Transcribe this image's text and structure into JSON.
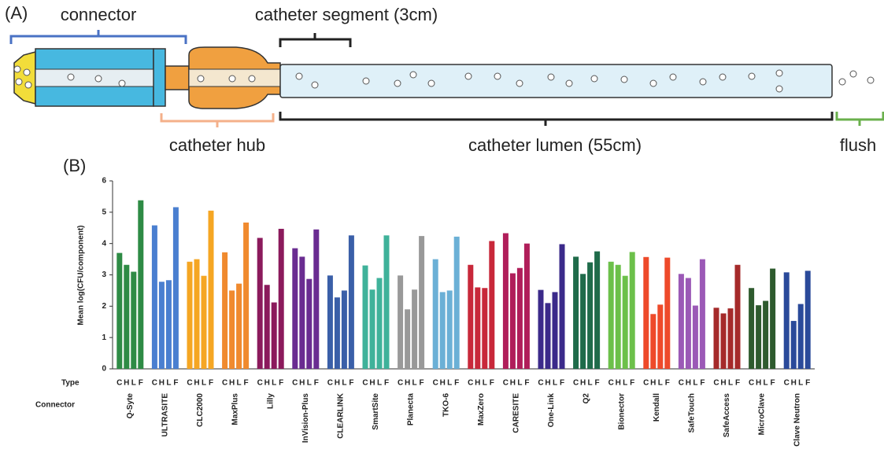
{
  "diagram": {
    "panel_label": "(A)",
    "connector": "connector",
    "segment": "catheter segment (3cm)",
    "hub": "catheter hub",
    "lumen": "catheter lumen (55cm)",
    "flush": "flush"
  },
  "chart_data": {
    "type": "grouped-bar",
    "panel_label": "(B)",
    "y_label": "Mean log(CFU/component)",
    "type_row_label": "Type",
    "connector_row_label": "Connector",
    "types": [
      "C",
      "H",
      "L",
      "F"
    ],
    "ylim": [
      0,
      6
    ],
    "yticks": [
      0,
      1,
      2,
      3,
      4,
      5,
      6
    ],
    "groups": [
      {
        "name": "Q-Syte",
        "color": "#2e8b45",
        "values": [
          3.7,
          3.32,
          3.1,
          5.38
        ]
      },
      {
        "name": "ULTRASITE",
        "color": "#4a7fd0",
        "values": [
          4.58,
          2.78,
          2.83,
          5.16
        ]
      },
      {
        "name": "CLC2000",
        "color": "#f5a623",
        "values": [
          3.42,
          3.5,
          2.97,
          5.05
        ]
      },
      {
        "name": "MaxPlus",
        "color": "#f08a2e",
        "values": [
          3.72,
          2.5,
          2.72,
          4.67
        ]
      },
      {
        "name": "Lilly",
        "color": "#8b1a5c",
        "values": [
          4.18,
          2.68,
          2.12,
          4.47
        ]
      },
      {
        "name": "InVision-Plus",
        "color": "#6a2c91",
        "values": [
          3.85,
          3.58,
          2.87,
          4.45
        ]
      },
      {
        "name": "CLEARLINK",
        "color": "#3a5fa8",
        "values": [
          2.98,
          2.28,
          2.5,
          4.26
        ]
      },
      {
        "name": "SmartSite",
        "color": "#3fb29a",
        "values": [
          3.3,
          2.53,
          2.9,
          4.26
        ]
      },
      {
        "name": "Planecta",
        "color": "#999999",
        "values": [
          2.98,
          1.9,
          2.53,
          4.24
        ]
      },
      {
        "name": "TKO-6",
        "color": "#6bb0d6",
        "values": [
          3.5,
          2.45,
          2.5,
          4.22
        ]
      },
      {
        "name": "MaxZero",
        "color": "#c8283a",
        "values": [
          3.32,
          2.6,
          2.58,
          4.08
        ]
      },
      {
        "name": "CARESITE",
        "color": "#b01e5a",
        "values": [
          4.33,
          3.05,
          3.22,
          4.0
        ]
      },
      {
        "name": "One-Link",
        "color": "#3b2a8a",
        "values": [
          2.52,
          2.1,
          2.45,
          3.98
        ]
      },
      {
        "name": "Q2",
        "color": "#1f6b4a",
        "values": [
          3.58,
          3.03,
          3.4,
          3.75
        ]
      },
      {
        "name": "Bionector",
        "color": "#6cc04a",
        "values": [
          3.42,
          3.32,
          2.97,
          3.73
        ]
      },
      {
        "name": "Kendall",
        "color": "#ee4a2a",
        "values": [
          3.57,
          1.75,
          2.05,
          3.55
        ]
      },
      {
        "name": "SafeTouch",
        "color": "#9b59b6",
        "values": [
          3.03,
          2.9,
          2.02,
          3.5
        ]
      },
      {
        "name": "SafeAccess",
        "color": "#a52a2a",
        "values": [
          1.95,
          1.77,
          1.93,
          3.32
        ]
      },
      {
        "name": "MicroClave",
        "color": "#2e5b2e",
        "values": [
          2.58,
          2.03,
          2.17,
          3.2
        ]
      },
      {
        "name": "Clave Neutron",
        "color": "#2a4a9a",
        "values": [
          3.08,
          1.53,
          2.07,
          3.13
        ]
      }
    ]
  }
}
